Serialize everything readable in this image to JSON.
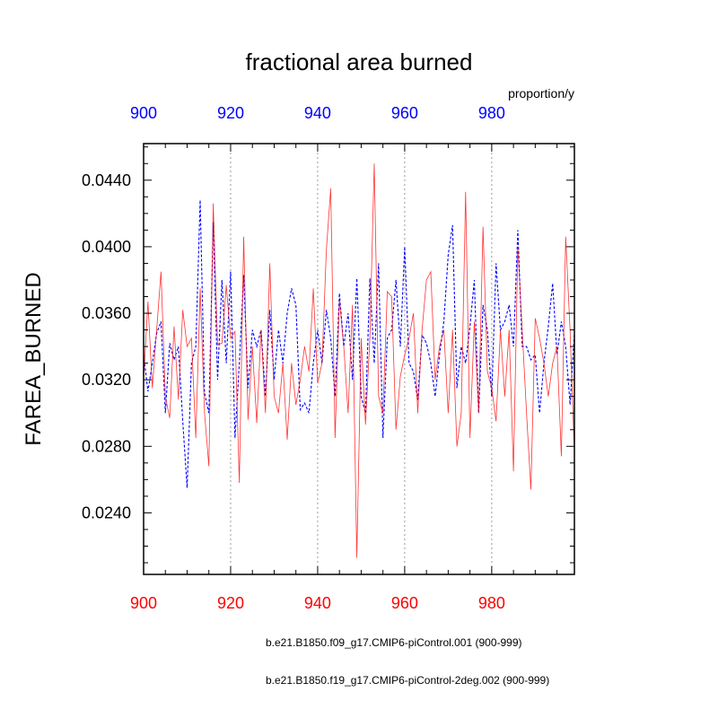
{
  "chart_data": {
    "type": "line",
    "title": "fractional area burned",
    "units_label": "proportion/y",
    "ylabel": "FAREA_BURNED",
    "xlim": [
      900,
      999
    ],
    "ylim": [
      0.0203,
      0.0462
    ],
    "x_ticks": [
      900,
      920,
      940,
      960,
      980
    ],
    "x_tick_labels": [
      "900",
      "920",
      "940",
      "960",
      "980"
    ],
    "y_ticks": [
      0.024,
      0.028,
      0.032,
      0.036,
      0.04,
      0.044
    ],
    "y_tick_labels": [
      "0.0240",
      "0.0280",
      "0.0320",
      "0.0360",
      "0.0400",
      "0.0440"
    ],
    "grid": "vertical dotted lines at major x ticks",
    "top_tick_color": "#0000ff",
    "bottom_tick_color": "#ff0000",
    "x_start": 900,
    "series": [
      {
        "name": "b.e21.B1850.f09_g17.CMIP6-piControl.001 (900-999)",
        "color": "#0000ff",
        "style": "dashed",
        "values": [
          0.0335,
          0.0313,
          0.033,
          0.0348,
          0.0355,
          0.03,
          0.0342,
          0.0332,
          0.034,
          0.0295,
          0.0255,
          0.033,
          0.034,
          0.0428,
          0.0312,
          0.03,
          0.0415,
          0.032,
          0.038,
          0.033,
          0.0385,
          0.0285,
          0.033,
          0.0383,
          0.0315,
          0.035,
          0.034,
          0.035,
          0.031,
          0.0362,
          0.032,
          0.035,
          0.033,
          0.036,
          0.0375,
          0.0365,
          0.0302,
          0.0306,
          0.03,
          0.033,
          0.035,
          0.033,
          0.0362,
          0.0345,
          0.031,
          0.0372,
          0.034,
          0.036,
          0.032,
          0.0381,
          0.031,
          0.03,
          0.0381,
          0.033,
          0.039,
          0.0285,
          0.0345,
          0.035,
          0.038,
          0.034,
          0.04,
          0.033,
          0.0325,
          0.0308,
          0.0347,
          0.0342,
          0.033,
          0.031,
          0.0335,
          0.0355,
          0.0395,
          0.0413,
          0.0315,
          0.034,
          0.033,
          0.0352,
          0.038,
          0.03,
          0.0365,
          0.035,
          0.031,
          0.039,
          0.035,
          0.0355,
          0.0365,
          0.034,
          0.041,
          0.034,
          0.034,
          0.0332,
          0.0335,
          0.03,
          0.033,
          0.0352,
          0.0378,
          0.0335,
          0.0355,
          0.034,
          0.0305,
          0.0348
        ]
      },
      {
        "name": "b.e21.B1850.f19_g17.CMIP6-piControl-2deg.002 (900-999)",
        "color": "#ff0000",
        "style": "solid",
        "values": [
          0.032,
          0.0367,
          0.0315,
          0.035,
          0.0385,
          0.031,
          0.0297,
          0.0352,
          0.0308,
          0.0362,
          0.034,
          0.0345,
          0.0285,
          0.0375,
          0.03,
          0.0268,
          0.0426,
          0.0341,
          0.0342,
          0.0377,
          0.0345,
          0.0349,
          0.0258,
          0.0406,
          0.0296,
          0.034,
          0.0294,
          0.035,
          0.03,
          0.039,
          0.031,
          0.03,
          0.033,
          0.0284,
          0.033,
          0.0305,
          0.032,
          0.034,
          0.0325,
          0.0375,
          0.0318,
          0.033,
          0.0398,
          0.0435,
          0.0285,
          0.0368,
          0.034,
          0.03,
          0.0365,
          0.0213,
          0.0345,
          0.0293,
          0.0345,
          0.045,
          0.031,
          0.03,
          0.0373,
          0.037,
          0.029,
          0.0322,
          0.0335,
          0.0345,
          0.036,
          0.03,
          0.035,
          0.038,
          0.0385,
          0.032,
          0.034,
          0.035,
          0.03,
          0.035,
          0.028,
          0.03,
          0.0433,
          0.0285,
          0.0355,
          0.03,
          0.0412,
          0.0325,
          0.0315,
          0.0295,
          0.035,
          0.031,
          0.035,
          0.0265,
          0.04,
          0.035,
          0.03,
          0.0254,
          0.0357,
          0.0345,
          0.033,
          0.031,
          0.033,
          0.034,
          0.0274,
          0.0406,
          0.035,
          0.0276
        ]
      }
    ]
  }
}
